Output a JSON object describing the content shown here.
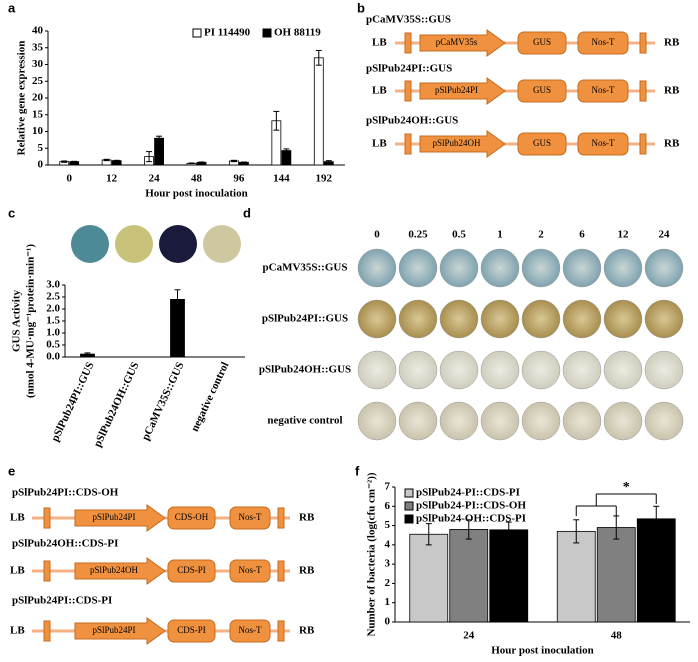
{
  "panel_labels": [
    "a",
    "b",
    "c",
    "d",
    "e",
    "f"
  ],
  "chart_data": [
    {
      "type": "bar",
      "xlabel": "Hour post inoculation",
      "ylabel": "Relative gene expression",
      "categories": [
        "0",
        "12",
        "24",
        "48",
        "96",
        "144",
        "192"
      ],
      "series": [
        {
          "name": "PI 114490",
          "color": "#ffffff",
          "values": [
            1,
            1.5,
            2.5,
            0.5,
            1.2,
            13.2,
            32
          ],
          "errors": [
            0.2,
            0.2,
            1.5,
            0.1,
            0.2,
            2.8,
            2.2
          ]
        },
        {
          "name": "OH 88119",
          "color": "#000000",
          "values": [
            1,
            1.3,
            8,
            0.8,
            0.8,
            4.3,
            1
          ],
          "errors": [
            0.1,
            0.1,
            0.6,
            0.1,
            0.1,
            0.5,
            0.3
          ]
        }
      ],
      "ylim": [
        0,
        40
      ],
      "yticks": [
        0,
        5,
        10,
        15,
        20,
        25,
        30,
        35,
        40
      ],
      "legend": "top"
    },
    {
      "type": "bar",
      "ylabel": "GUS Activity",
      "ylabel_units": "(nmol 4-MU·mg⁻¹protein·min⁻¹)",
      "categories": [
        "pSlPub24PI::GUS",
        "pSlPub24OH::GUS",
        "pCaMV35S::GUS",
        "negative control"
      ],
      "values": [
        0.12,
        0,
        2.4,
        0
      ],
      "errors": [
        0.05,
        0,
        0.4,
        0
      ],
      "color": "#000000",
      "ylim": [
        0,
        3
      ],
      "yticks": [
        {
          "value": 0,
          "label": "0.0"
        },
        {
          "value": 0.5,
          "label": "0.5"
        },
        {
          "value": 1,
          "label": "1.0"
        },
        {
          "value": 1.5,
          "label": "1.5"
        },
        {
          "value": 2,
          "label": "2.0"
        },
        {
          "value": 2.5,
          "label": "2.5"
        },
        {
          "value": 3,
          "label": "3.0"
        }
      ]
    },
    {
      "type": "bar",
      "xlabel": "Hour post inoculation",
      "ylabel": "Number of bacteria (log(cfu cm⁻²))",
      "categories": [
        "24",
        "48"
      ],
      "series": [
        {
          "name": "pSlPub24-PI::CDS-PI",
          "color": "#c8c8c8",
          "values": [
            4.55,
            4.7
          ],
          "errors": [
            0.55,
            0.6
          ]
        },
        {
          "name": "pSlPub24-PI::CDS-OH",
          "color": "#808080",
          "values": [
            4.8,
            4.9
          ],
          "errors": [
            0.5,
            0.6
          ]
        },
        {
          "name": "pSlPub24-OH::CDS-PI",
          "color": "#000000",
          "values": [
            4.78,
            5.35
          ],
          "errors": [
            0.4,
            0.65
          ]
        }
      ],
      "ylim": [
        0,
        7
      ],
      "yticks": [
        0,
        1,
        2,
        3,
        4,
        5,
        6,
        7
      ],
      "legend": "upper left",
      "annotation": "*"
    }
  ],
  "constructs_b": [
    {
      "name": "pCaMV35S::GUS",
      "left": "LB",
      "promoter": "pCaMV35s",
      "parts": [
        "GUS",
        "Nos-T"
      ],
      "right": "RB"
    },
    {
      "name": "pSlPub24PI::GUS",
      "left": "LB",
      "promoter": "pSlPub24PI",
      "parts": [
        "GUS",
        "Nos-T"
      ],
      "right": "RB"
    },
    {
      "name": "pSlPub24OH::GUS",
      "left": "LB",
      "promoter": "pSlPub24OH",
      "parts": [
        "GUS",
        "Nos-T"
      ],
      "right": "RB"
    }
  ],
  "panel_d": {
    "columns": [
      "0",
      "0.25",
      "0.5",
      "1",
      "2",
      "6",
      "12",
      "24"
    ],
    "rows": [
      "pCaMV35S::GUS",
      "pSlPub24PI::GUS",
      "pSlPub24OH::GUS",
      "negative control"
    ]
  },
  "constructs_e": [
    {
      "name": "pSlPub24PI::CDS-OH",
      "left": "LB",
      "promoter": "pSlPub24PI",
      "parts": [
        "CDS-OH",
        "Nos-T"
      ],
      "right": "RB"
    },
    {
      "name": "pSlPub24OH::CDS-PI",
      "left": "LB",
      "promoter": "pSlPub24OH",
      "parts": [
        "CDS-PI",
        "Nos-T"
      ],
      "right": "RB"
    },
    {
      "name": "pSlPub24PI::CDS-PI",
      "left": "LB",
      "promoter": "pSlPub24PI",
      "parts": [
        "CDS-PI",
        "Nos-T"
      ],
      "right": "RB"
    }
  ]
}
